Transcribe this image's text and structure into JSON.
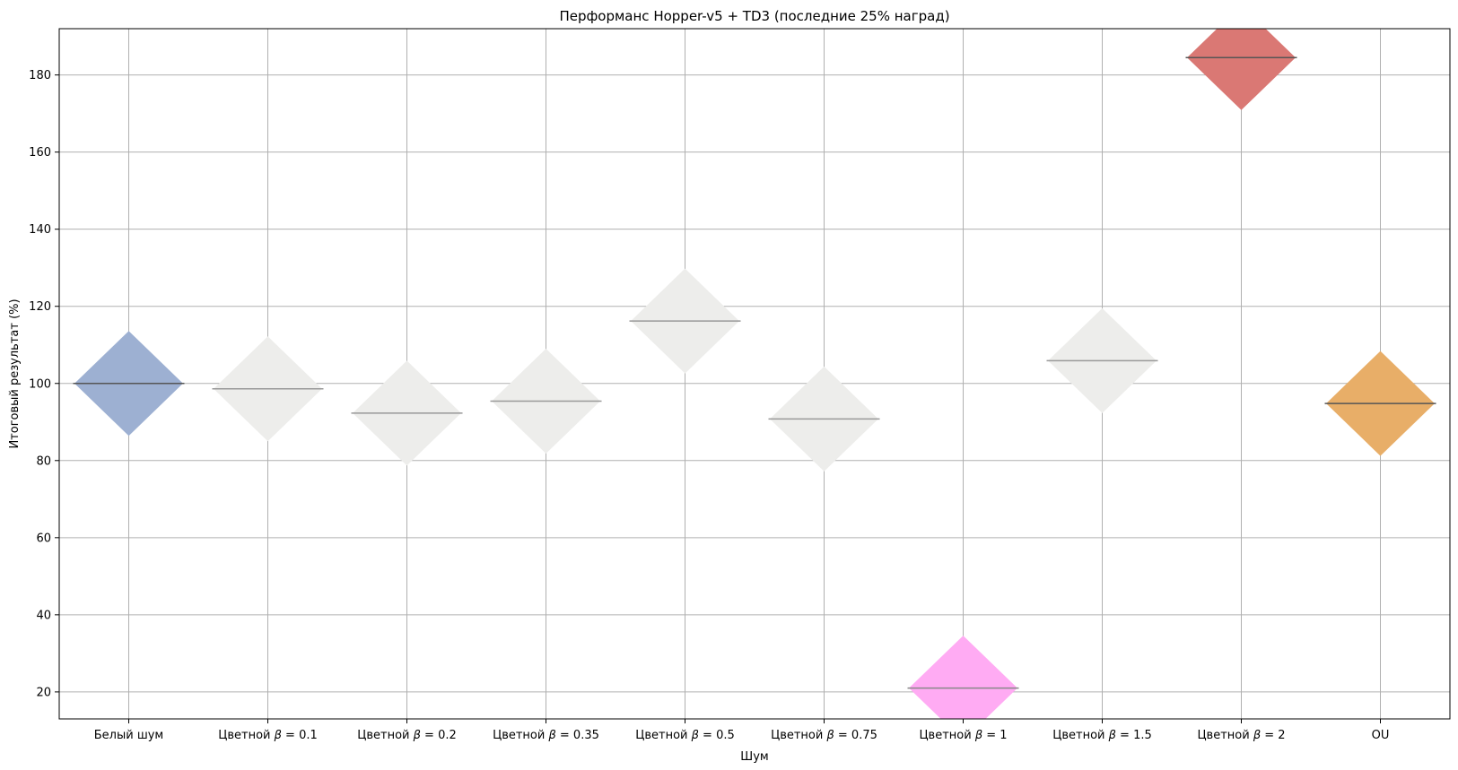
{
  "chart_data": {
    "type": "scatter",
    "title": "Перформанс Hopper-v5 + TD3 (последние 25% наград)",
    "xlabel": "Шум",
    "ylabel": "Итоговый результат (%)",
    "ylim": [
      13,
      192
    ],
    "yticks": [
      20,
      40,
      60,
      80,
      100,
      120,
      140,
      160,
      180
    ],
    "grid": true,
    "marker": "diamond",
    "categories": [
      {
        "prefix": "Белый шум",
        "beta": ""
      },
      {
        "prefix": "Цветной",
        "beta": "0.1"
      },
      {
        "prefix": "Цветной",
        "beta": "0.2"
      },
      {
        "prefix": "Цветной",
        "beta": "0.35"
      },
      {
        "prefix": "Цветной",
        "beta": "0.5"
      },
      {
        "prefix": "Цветной",
        "beta": "0.75"
      },
      {
        "prefix": "Цветной",
        "beta": "1"
      },
      {
        "prefix": "Цветной",
        "beta": "1.5"
      },
      {
        "prefix": "Цветной",
        "beta": "2"
      },
      {
        "prefix": "OU",
        "beta": ""
      }
    ],
    "values": [
      100.0,
      98.6,
      92.3,
      95.4,
      116.2,
      90.8,
      21.0,
      105.9,
      184.5,
      94.8
    ],
    "spread": [
      13.6,
      13.6,
      13.6,
      13.6,
      13.6,
      13.6,
      13.6,
      13.6,
      13.6,
      13.6
    ],
    "colors": [
      "#9db0d2",
      "#ededeb",
      "#ededeb",
      "#ededeb",
      "#ededeb",
      "#ededeb",
      "#ffabf3",
      "#ededeb",
      "#da7874",
      "#e8ae68"
    ],
    "median_line_colors": [
      "#555555",
      "#999999",
      "#999999",
      "#999999",
      "#999999",
      "#999999",
      "#888888",
      "#999999",
      "#555555",
      "#555555"
    ]
  }
}
